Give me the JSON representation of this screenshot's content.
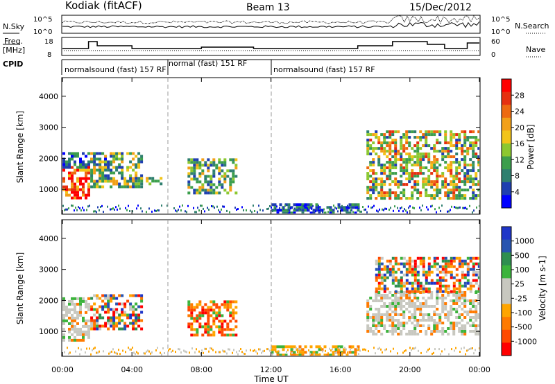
{
  "header": {
    "station": "Kodiak (fitACF)",
    "beam": "Beam 13",
    "date": "15/Dec/2012"
  },
  "noise_panel": {
    "left_label": "N.Sky",
    "right_label": "N.Search",
    "ticks": [
      "10^5",
      "10^0"
    ]
  },
  "freq_panel": {
    "left_label_line1": "Freq.",
    "left_label_line2": "[MHz]",
    "left_ticks": [
      "18",
      "8"
    ],
    "right_label": "Nave",
    "right_ticks": [
      "60",
      "0"
    ]
  },
  "cpid_panel": {
    "label": "CPID",
    "segments": [
      "normalsound (fast) 157 RF",
      "normal (fast) 151 RF",
      "normalsound (fast) 157 RF"
    ]
  },
  "colors": {
    "power": [
      "#0000ff",
      "#1f3fb0",
      "#2f7f6f",
      "#3c9e4c",
      "#8cc830",
      "#f2c418",
      "#f2a018",
      "#ee6a10",
      "#e63010",
      "#ff0000"
    ],
    "velocity": [
      "#ff0000",
      "#ff4a00",
      "#ff7a00",
      "#ffa500",
      "#c8c8c0",
      "#c8c8c0",
      "#3cb43c",
      "#2f8f4f",
      "#2855b0",
      "#1f36c8"
    ]
  },
  "chart_data": [
    {
      "type": "heatmap",
      "name": "power",
      "xlabel": "",
      "ylabel": "Slant Range [km]",
      "x_ticks": [
        "00:00",
        "04:00",
        "08:00",
        "12:00",
        "16:00",
        "20:00",
        "00:00"
      ],
      "y_ticks": [
        "1000",
        "2000",
        "3000",
        "4000"
      ],
      "ylim": [
        200,
        4600
      ],
      "colorbar": {
        "label": "Power [dB]",
        "ticks": [
          "28",
          "24",
          "20",
          "16",
          "12",
          "8",
          "4"
        ]
      },
      "echo_regions": [
        {
          "t": [
            0.0,
            1.5
          ],
          "r": [
            700,
            1750
          ],
          "level": "high"
        },
        {
          "t": [
            0.0,
            2.5
          ],
          "r": [
            1750,
            2200
          ],
          "level": "low"
        },
        {
          "t": [
            1.6,
            4.6
          ],
          "r": [
            1100,
            2200
          ],
          "level": "mid"
        },
        {
          "t": [
            4.0,
            5.6
          ],
          "r": [
            1150,
            1400
          ],
          "level": "mid"
        },
        {
          "t": [
            7.2,
            10.0
          ],
          "r": [
            850,
            2000
          ],
          "level": "mid"
        },
        {
          "t": [
            12.0,
            17.0
          ],
          "r": [
            200,
            550
          ],
          "level": "low"
        },
        {
          "t": [
            17.5,
            24.0
          ],
          "r": [
            700,
            2900
          ],
          "level": "mid-high"
        }
      ]
    },
    {
      "type": "heatmap",
      "name": "velocity",
      "xlabel": "Time UT",
      "ylabel": "Slant Range [km]",
      "x_ticks": [
        "00:00",
        "04:00",
        "08:00",
        "12:00",
        "16:00",
        "20:00",
        "00:00"
      ],
      "y_ticks": [
        "1000",
        "2000",
        "3000",
        "4000"
      ],
      "ylim": [
        200,
        4600
      ],
      "colorbar": {
        "label": "Velocity [m s-1]",
        "ticks": [
          "1000",
          "500",
          "100",
          "25",
          "-25",
          "-100",
          "-500",
          "-1000"
        ]
      },
      "echo_regions": [
        {
          "t": [
            0.0,
            1.5
          ],
          "r": [
            700,
            2100
          ],
          "level": "ground-scatter"
        },
        {
          "t": [
            1.6,
            4.6
          ],
          "r": [
            1100,
            2200
          ],
          "level": "mixed"
        },
        {
          "t": [
            7.2,
            10.0
          ],
          "r": [
            850,
            2000
          ],
          "level": "negative"
        },
        {
          "t": [
            12.0,
            17.0
          ],
          "r": [
            200,
            550
          ],
          "level": "negative-low"
        },
        {
          "t": [
            17.5,
            24.0
          ],
          "r": [
            900,
            2300
          ],
          "level": "ground-scatter"
        },
        {
          "t": [
            18.0,
            24.0
          ],
          "r": [
            2300,
            3400
          ],
          "level": "mixed"
        }
      ]
    }
  ]
}
